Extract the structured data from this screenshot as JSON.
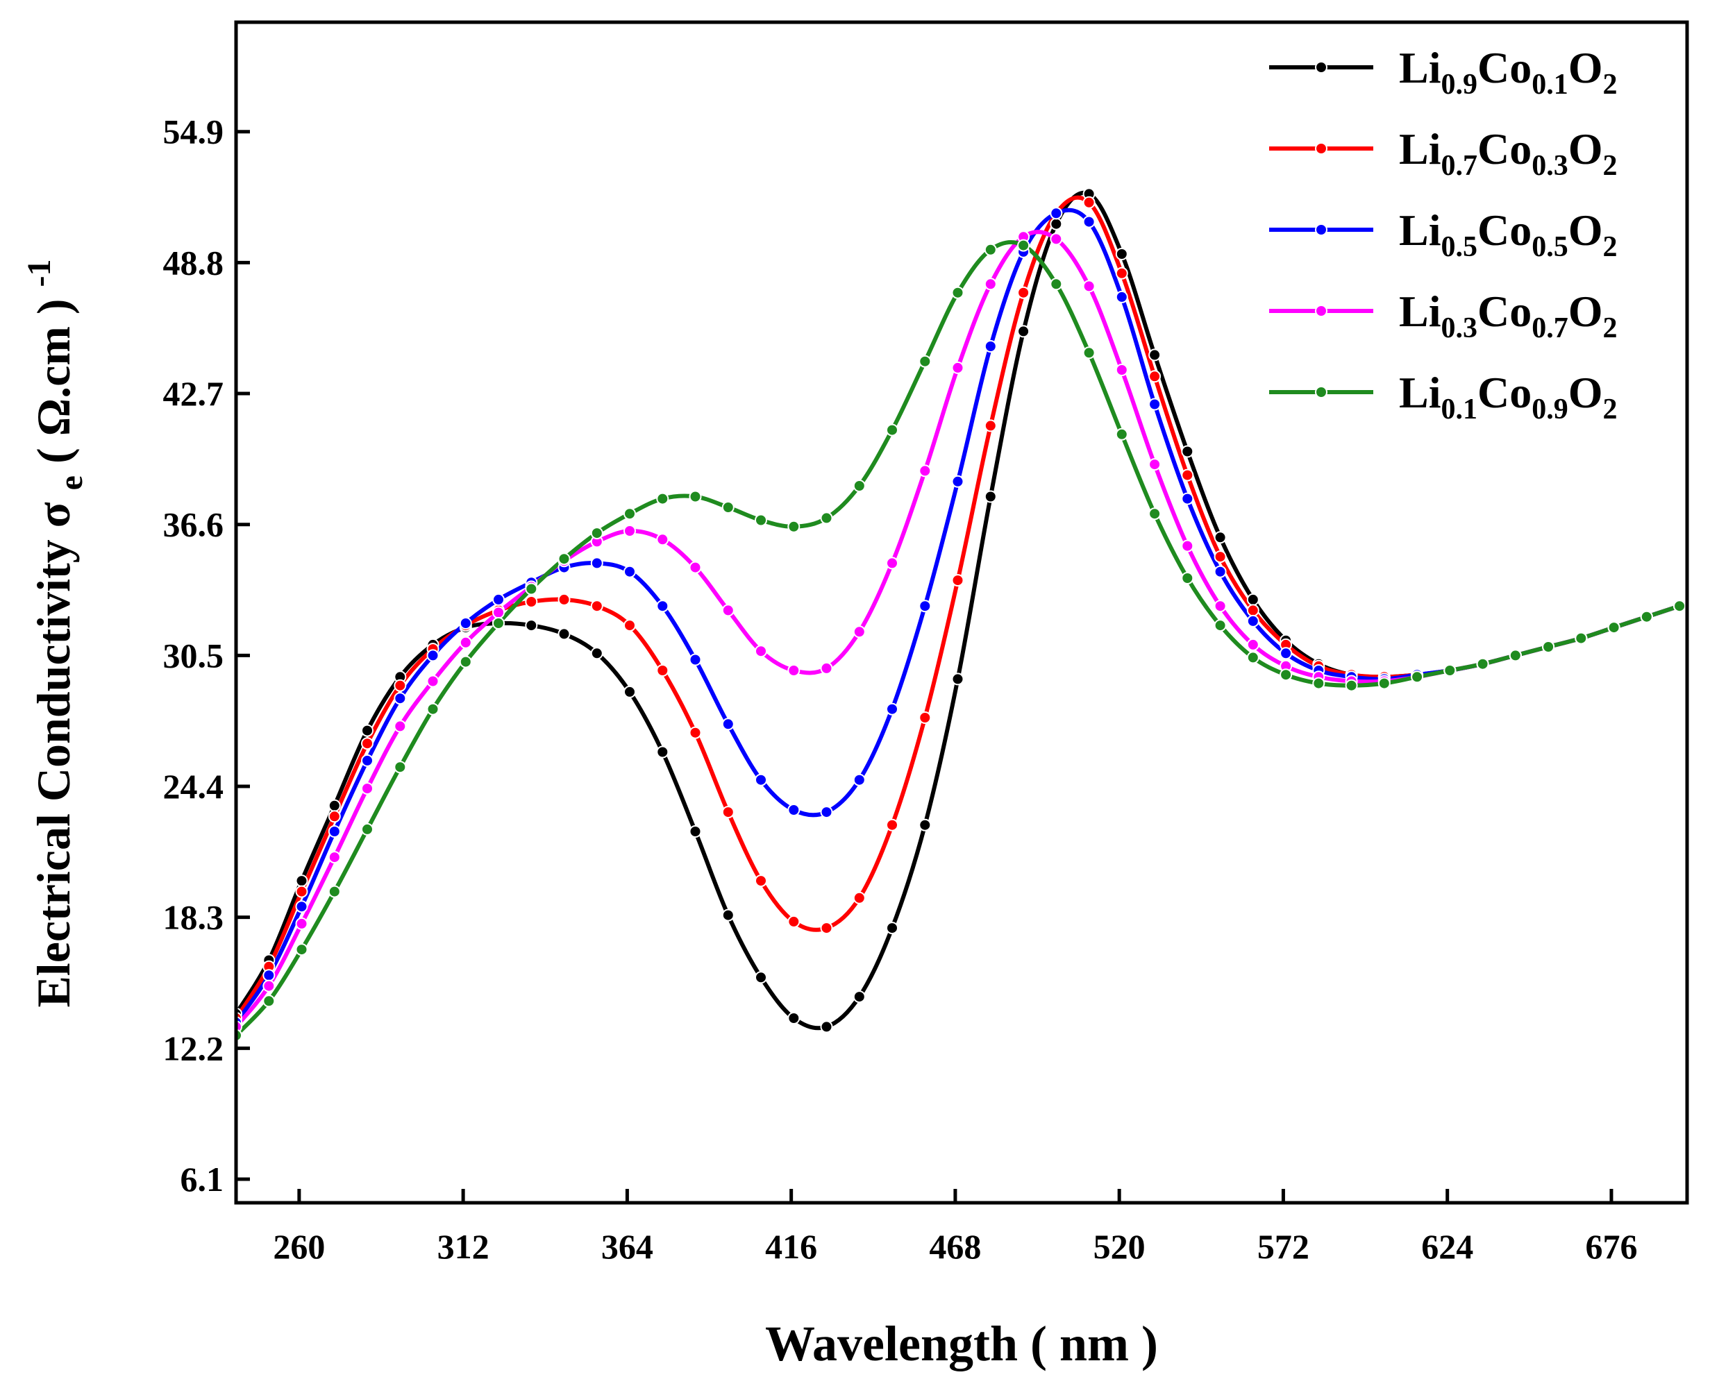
{
  "chart_data": {
    "type": "line",
    "xlabel": "Wavelength ( nm )",
    "ylabel": {
      "main": "Electrical Conductivity σ",
      "sub": "e",
      "unit": " ( Ω.cm )",
      "sup": "-1"
    },
    "xlim": [
      240,
      700
    ],
    "ylim": [
      5,
      60
    ],
    "x_ticks": [
      260,
      312,
      364,
      416,
      468,
      520,
      572,
      624,
      676
    ],
    "y_ticks": [
      6.1,
      12.2,
      18.3,
      24.4,
      30.5,
      36.6,
      42.7,
      48.8,
      54.9
    ],
    "grid": false,
    "legend_position": "top-right",
    "x": [
      240,
      250.4,
      260.8,
      271.2,
      281.6,
      292,
      302.4,
      312.8,
      323.2,
      333.6,
      344,
      354.4,
      364.8,
      375.2,
      385.6,
      396,
      406.4,
      416.8,
      427.2,
      437.6,
      448,
      458.4,
      468.8,
      479.2,
      489.6,
      500,
      510.4,
      520.8,
      531.2,
      541.6,
      552,
      562.4,
      572.8,
      583.2,
      593.6,
      604,
      614.4,
      624.8,
      635.2,
      645.6,
      656,
      666.4,
      676.8,
      687.2,
      697.6
    ],
    "series": [
      {
        "name": "Li0.9Co0.1O2",
        "label": {
          "parts": [
            [
              "Li",
              ""
            ],
            [
              "0.9",
              "sub"
            ],
            [
              "Co",
              ""
            ],
            [
              "0.1",
              "sub"
            ],
            [
              "O",
              ""
            ],
            [
              "2",
              "sub"
            ]
          ]
        },
        "color": "#000000",
        "values": [
          13.8,
          16.3,
          20.0,
          23.5,
          27.0,
          29.5,
          31.0,
          31.8,
          32.0,
          31.9,
          31.5,
          30.6,
          28.8,
          26.0,
          22.3,
          18.4,
          15.5,
          13.6,
          13.2,
          14.6,
          17.8,
          22.6,
          29.4,
          37.9,
          45.6,
          50.6,
          52.0,
          49.2,
          44.5,
          40.0,
          36.0,
          33.1,
          31.2,
          30.1,
          29.6,
          29.5,
          29.6,
          29.8,
          30.1,
          30.5,
          30.9,
          31.3,
          31.8,
          32.3,
          32.8
        ]
      },
      {
        "name": "Li0.7Co0.3O2",
        "label": {
          "parts": [
            [
              "Li",
              ""
            ],
            [
              "0.7",
              "sub"
            ],
            [
              "Co",
              ""
            ],
            [
              "0.3",
              "sub"
            ],
            [
              "O",
              ""
            ],
            [
              "2",
              "sub"
            ]
          ]
        },
        "color": "#ff0000",
        "values": [
          13.6,
          16.0,
          19.5,
          23.0,
          26.4,
          29.1,
          30.8,
          31.9,
          32.6,
          33.0,
          33.1,
          32.8,
          31.9,
          29.8,
          26.9,
          23.2,
          20.0,
          18.1,
          17.8,
          19.2,
          22.6,
          27.6,
          34.0,
          41.2,
          47.4,
          51.1,
          51.6,
          48.3,
          43.5,
          38.9,
          35.1,
          32.6,
          31.0,
          30.0,
          29.6,
          29.5,
          29.6,
          29.8,
          30.1,
          30.5,
          30.9,
          31.3,
          31.8,
          32.3,
          32.8
        ]
      },
      {
        "name": "Li0.5Co0.5O2",
        "label": {
          "parts": [
            [
              "Li",
              ""
            ],
            [
              "0.5",
              "sub"
            ],
            [
              "Co",
              ""
            ],
            [
              "0.5",
              "sub"
            ],
            [
              "O",
              ""
            ],
            [
              "2",
              "sub"
            ]
          ]
        },
        "color": "#0000ff",
        "values": [
          13.4,
          15.6,
          18.8,
          22.3,
          25.6,
          28.5,
          30.5,
          32.0,
          33.1,
          33.9,
          34.6,
          34.8,
          34.4,
          32.8,
          30.3,
          27.3,
          24.7,
          23.3,
          23.2,
          24.7,
          28.0,
          32.8,
          38.6,
          44.9,
          49.3,
          51.1,
          50.7,
          47.2,
          42.2,
          37.8,
          34.4,
          32.1,
          30.6,
          29.8,
          29.5,
          29.4,
          29.6,
          29.8,
          30.1,
          30.5,
          30.9,
          31.3,
          31.8,
          32.3,
          32.8
        ]
      },
      {
        "name": "Li0.3Co0.7O2",
        "label": {
          "parts": [
            [
              "Li",
              ""
            ],
            [
              "0.3",
              "sub"
            ],
            [
              "Co",
              ""
            ],
            [
              "0.7",
              "sub"
            ],
            [
              "O",
              ""
            ],
            [
              "2",
              "sub"
            ]
          ]
        },
        "color": "#ff00ff",
        "values": [
          13.2,
          15.1,
          18.0,
          21.1,
          24.3,
          27.2,
          29.3,
          31.1,
          32.5,
          33.7,
          34.9,
          35.8,
          36.3,
          35.9,
          34.6,
          32.6,
          30.7,
          29.8,
          29.9,
          31.6,
          34.8,
          39.1,
          43.9,
          47.8,
          50.0,
          49.9,
          47.7,
          43.8,
          39.4,
          35.6,
          32.8,
          31.0,
          30.0,
          29.5,
          29.3,
          29.3,
          29.5,
          29.8,
          30.1,
          30.5,
          30.9,
          31.3,
          31.8,
          32.3,
          32.8
        ]
      },
      {
        "name": "Li0.1Co0.9O2",
        "label": {
          "parts": [
            [
              "Li",
              ""
            ],
            [
              "0.1",
              "sub"
            ],
            [
              "Co",
              ""
            ],
            [
              "0.9",
              "sub"
            ],
            [
              "O",
              ""
            ],
            [
              "2",
              "sub"
            ]
          ]
        },
        "color": "#1f8b1f",
        "values": [
          12.8,
          14.4,
          16.8,
          19.5,
          22.4,
          25.3,
          28.0,
          30.2,
          32.0,
          33.6,
          35.0,
          36.2,
          37.1,
          37.8,
          37.9,
          37.4,
          36.8,
          36.5,
          36.9,
          38.4,
          41.0,
          44.2,
          47.4,
          49.4,
          49.6,
          47.8,
          44.6,
          40.8,
          37.1,
          34.1,
          31.9,
          30.4,
          29.6,
          29.2,
          29.1,
          29.2,
          29.5,
          29.8,
          30.1,
          30.5,
          30.9,
          31.3,
          31.8,
          32.3,
          32.8
        ]
      }
    ]
  }
}
